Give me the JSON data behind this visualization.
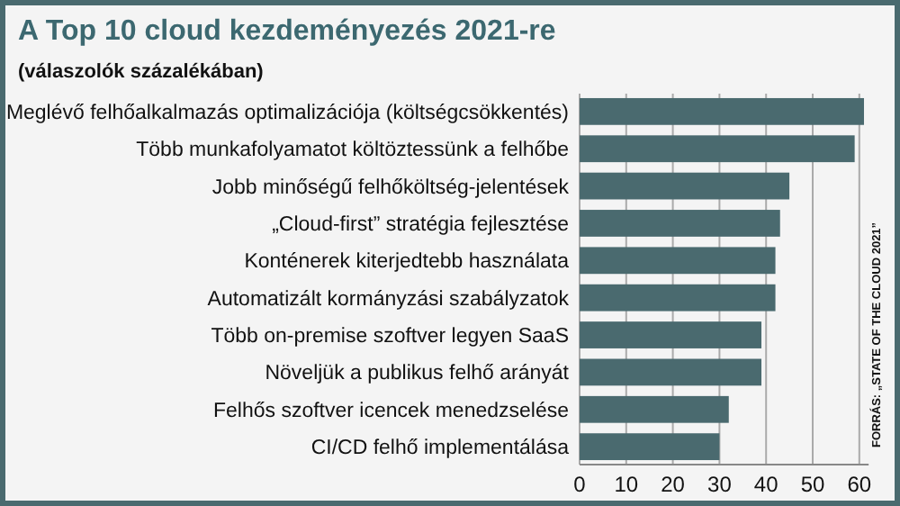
{
  "chart_data": {
    "type": "bar",
    "orientation": "horizontal",
    "title": "A Top 10 cloud kezdeményezés 2021-re",
    "subtitle": "(válaszolók százalékában)",
    "categories": [
      "Meglévő felhőalkalmazás optimalizációja (költségcsökkentés)",
      "Több munkafolyamatot költöztessünk a felhőbe",
      "Jobb minőségű felhőköltség-jelentések",
      "„Cloud-first” stratégia fejlesztése",
      "Konténerek kiterjedtebb használata",
      "Automatizált kormányzási szabályzatok",
      "Több on-premise szoftver legyen SaaS",
      "Növeljük a publikus felhő arányát",
      "Felhős szoftver icencek menedzselése",
      "CI/CD felhő implementálása"
    ],
    "values": [
      61,
      59,
      45,
      43,
      42,
      42,
      39,
      39,
      32,
      30
    ],
    "color": "#4a6a6f",
    "xlim": [
      0,
      62
    ],
    "xticks": [
      0,
      10,
      20,
      30,
      40,
      50,
      60
    ],
    "grid": "x",
    "annotations": [
      "FORRÁS: „STATE OF THE CLOUD 2021”"
    ]
  }
}
